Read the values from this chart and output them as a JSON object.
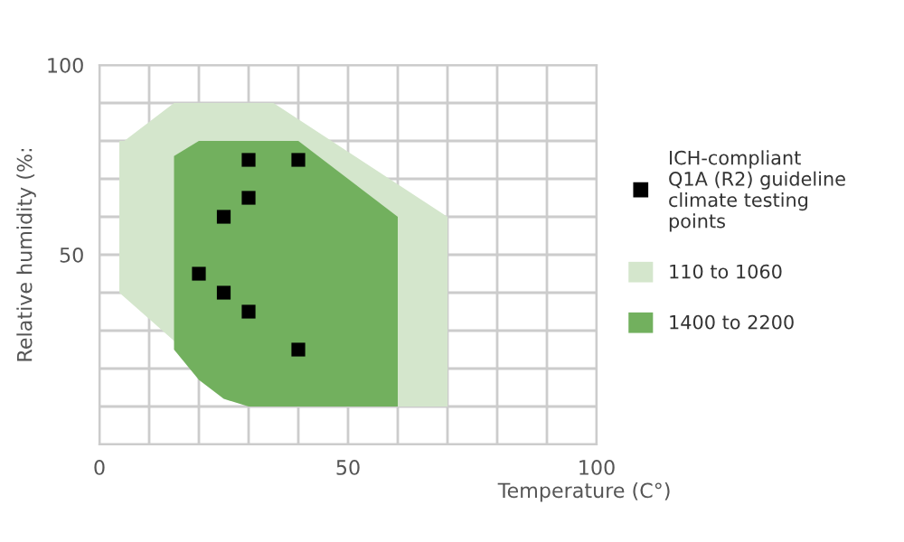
{
  "chart_data": {
    "type": "scatter",
    "xlabel": "Temperature (C°)",
    "ylabel": "Relative humidity (%:",
    "xlim": [
      0,
      100
    ],
    "ylim": [
      0,
      100
    ],
    "xticks": [
      0,
      {
        "value": 10,
        "label": null
      },
      {
        "value": 20,
        "label": null
      },
      {
        "value": 30,
        "label": null
      },
      {
        "value": 40,
        "label": null
      },
      50,
      {
        "value": 60,
        "label": null
      },
      {
        "value": 70,
        "label": null
      },
      {
        "value": 80,
        "label": null
      },
      {
        "value": 90,
        "label": null
      },
      100
    ],
    "yticks": [
      {
        "value": 0,
        "label": null
      },
      {
        "value": 10,
        "label": null
      },
      {
        "value": 20,
        "label": null
      },
      {
        "value": 30,
        "label": null
      },
      {
        "value": 40,
        "label": null
      },
      50,
      {
        "value": 60,
        "label": null
      },
      {
        "value": 70,
        "label": null
      },
      {
        "value": 80,
        "label": null
      },
      {
        "value": 90,
        "label": null
      },
      100
    ],
    "grid": true,
    "legend": "right",
    "series": [
      {
        "type": "area",
        "name": "110 to 1060",
        "color": "#d4e6cc",
        "x": [
          5,
          15,
          35,
          70,
          70,
          30,
          4,
          4
        ],
        "values": [
          80,
          90,
          90,
          60,
          10,
          10,
          40,
          80
        ]
      },
      {
        "type": "area",
        "name": "1400 to 2200",
        "color": "#72b05e",
        "x": [
          15,
          20,
          40,
          60,
          60,
          30,
          25,
          20,
          15
        ],
        "values": [
          76,
          80,
          80,
          60,
          10,
          10,
          12,
          17,
          25
        ]
      },
      {
        "name": "ICH-compliant\nQ1A (R2) guideline\nclimate testing\npoints",
        "color": "#000000",
        "marker": "square",
        "x": [
          30,
          40,
          30,
          25,
          20,
          25,
          30,
          40
        ],
        "values": [
          75,
          75,
          65,
          60,
          45,
          40,
          35,
          25
        ]
      }
    ]
  }
}
